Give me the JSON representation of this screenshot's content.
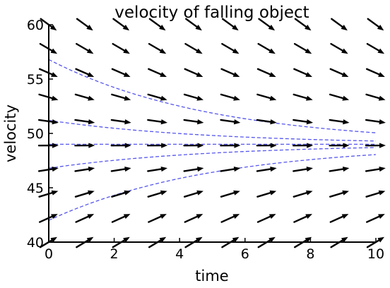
{
  "chart_data": {
    "type": "direction_field",
    "title": "velocity of falling object",
    "xlabel": "time",
    "ylabel": "velocity",
    "xlim": [
      0,
      10
    ],
    "ylim": [
      40,
      60
    ],
    "xticks": [
      0,
      2,
      4,
      6,
      8,
      10
    ],
    "yticks": [
      40,
      45,
      50,
      55,
      60
    ],
    "grid": false,
    "equilibrium": 49,
    "field": {
      "t_values": [
        0,
        1.11,
        2.22,
        3.33,
        4.44,
        5.56,
        6.67,
        7.78,
        8.89,
        10
      ],
      "v_values": [
        40,
        42.22,
        44.44,
        46.67,
        48.89,
        51.11,
        53.33,
        55.56,
        57.78,
        60
      ],
      "slope_rule": "dv/dt = 9.8 - v/5",
      "arrow_color": "#000000"
    },
    "solution_curves": [
      {
        "v0": 56.8,
        "color": "#5555ee",
        "style": "dashed"
      },
      {
        "v0": 51.2,
        "color": "#5555ee",
        "style": "dashed"
      },
      {
        "v0": 49.0,
        "color": "#5555ee",
        "style": "dashed"
      },
      {
        "v0": 46.8,
        "color": "#5555ee",
        "style": "dashed"
      },
      {
        "v0": 42.0,
        "color": "#5555ee",
        "style": "dashed"
      }
    ]
  }
}
